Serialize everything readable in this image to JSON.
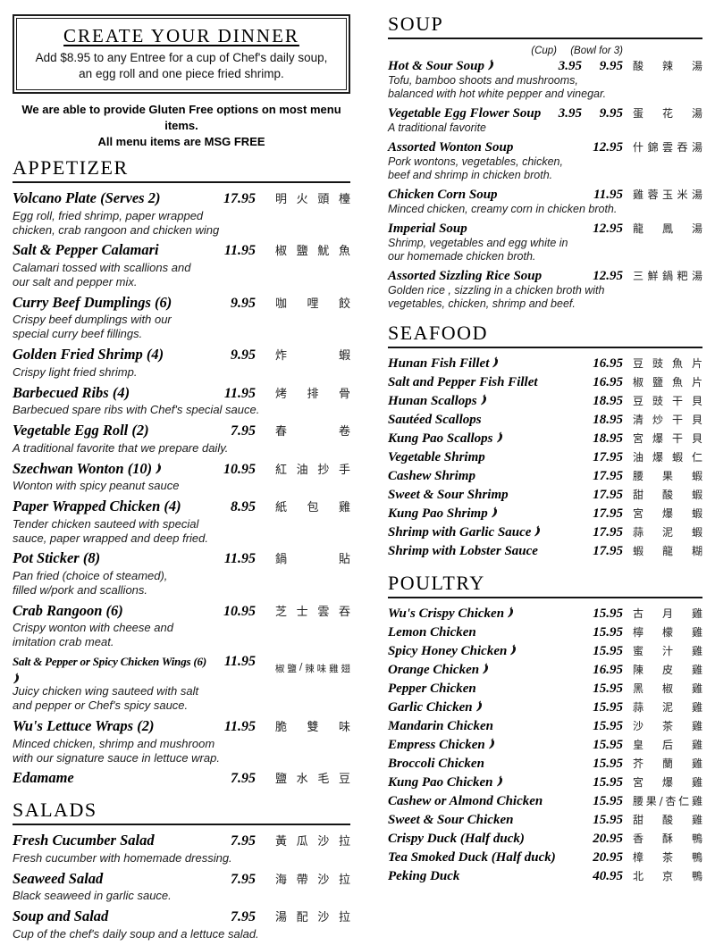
{
  "create_dinner": {
    "title": "CREATE YOUR DINNER",
    "line1": "Add $8.95 to any Entree for a cup of Chef's daily soup,",
    "line2": "an egg roll and one piece fried shrimp."
  },
  "note": {
    "line1": "We are able to provide Gluten Free options on most menu items.",
    "line2": "All menu items are MSG FREE"
  },
  "appetizer": {
    "title": "APPETIZER",
    "items": [
      {
        "name": "Volcano Plate (Serves 2)",
        "price": "17.95",
        "chinese": "明火頭檯",
        "desc": [
          "Egg roll, fried shrimp, paper wrapped",
          "chicken, crab rangoon and chicken wing"
        ]
      },
      {
        "name": "Salt & Pepper Calamari",
        "price": "11.95",
        "chinese": "椒鹽魷魚",
        "desc": [
          "Calamari tossed with scallions and",
          "our salt and pepper mix."
        ]
      },
      {
        "name": "Curry Beef Dumplings (6)",
        "price": "9.95",
        "chinese": "咖哩餃",
        "desc": [
          "Crispy beef dumplings with our",
          "special curry beef fillings."
        ]
      },
      {
        "name": "Golden Fried Shrimp (4)",
        "price": "9.95",
        "chinese": "炸蝦",
        "desc": [
          "Crispy light fried shrimp."
        ]
      },
      {
        "name": "Barbecued Ribs (4)",
        "price": "11.95",
        "chinese": "烤排骨",
        "desc": [
          "Barbecued spare ribs with Chef's special sauce."
        ]
      },
      {
        "name": "Vegetable Egg Roll (2)",
        "price": "7.95",
        "chinese": "春卷",
        "desc": [
          "A traditional favorite that we prepare daily."
        ]
      },
      {
        "name": "Szechwan Wonton (10)",
        "spicy": true,
        "price": "10.95",
        "chinese": "紅油抄手",
        "desc": [
          "Wonton with spicy peanut sauce"
        ]
      },
      {
        "name": "Paper Wrapped Chicken (4)",
        "price": "8.95",
        "chinese": "紙包雞",
        "desc": [
          "Tender chicken sauteed with special",
          "sauce, paper wrapped and deep fried."
        ]
      },
      {
        "name": "Pot Sticker (8)",
        "price": "11.95",
        "chinese": "鍋貼",
        "desc": [
          "Pan fried (choice of steamed),",
          "filled w/pork and scallions."
        ]
      },
      {
        "name": "Crab Rangoon (6)",
        "price": "10.95",
        "chinese": "芝士雲吞",
        "desc": [
          "Crispy wonton with cheese and",
          "imitation crab meat."
        ]
      },
      {
        "name": "Salt & Pepper or Spicy Chicken Wings (6)",
        "spicy": true,
        "condensed": true,
        "price": "11.95",
        "chinese": "椒鹽/辣味雞翅",
        "desc": [
          "Juicy chicken wing sauteed with salt",
          "and pepper or Chef's spicy sauce."
        ]
      },
      {
        "name": "Wu's Lettuce Wraps (2)",
        "price": "11.95",
        "chinese": "脆雙味",
        "desc": [
          "Minced chicken, shrimp and mushroom",
          "with our signature sauce in lettuce wrap."
        ]
      },
      {
        "name": "Edamame",
        "price": "7.95",
        "chinese": "鹽水毛豆",
        "desc": []
      }
    ]
  },
  "salads": {
    "title": "SALADS",
    "items": [
      {
        "name": "Fresh Cucumber Salad",
        "price": "7.95",
        "chinese": "黃瓜沙拉",
        "desc": [
          "Fresh cucumber with homemade dressing."
        ]
      },
      {
        "name": "Seaweed Salad",
        "price": "7.95",
        "chinese": "海帶沙拉",
        "desc": [
          "Black seaweed in garlic sauce."
        ]
      },
      {
        "name": "Soup and Salad",
        "price": "7.95",
        "chinese": "湯配沙拉",
        "desc": [
          "Cup of the chef's daily soup and a lettuce salad."
        ]
      }
    ]
  },
  "soup": {
    "title": "SOUP",
    "cup_label": "(Cup)",
    "bowl_label": "(Bowl for 3)",
    "items": [
      {
        "name": "Hot & Sour Soup",
        "spicy": true,
        "cup_price": "3.95",
        "bowl_price": "9.95",
        "chinese": "酸辣湯",
        "desc": [
          "Tofu, bamboo shoots and mushrooms,",
          "balanced with hot white pepper and vinegar."
        ]
      },
      {
        "name": "Vegetable Egg Flower Soup",
        "cup_price": "3.95",
        "bowl_price": "9.95",
        "chinese": "蛋花湯",
        "desc": [
          "A traditional favorite"
        ]
      },
      {
        "name": "Assorted Wonton Soup",
        "cup_price": "",
        "bowl_price": "12.95",
        "chinese": "什錦雲吞湯",
        "desc": [
          "Pork wontons, vegetables, chicken,",
          "beef and shrimp in chicken broth."
        ]
      },
      {
        "name": "Chicken Corn Soup",
        "cup_price": "",
        "bowl_price": "11.95",
        "chinese": "雞蓉玉米湯",
        "desc": [
          "Minced chicken, creamy corn in chicken broth."
        ]
      },
      {
        "name": "Imperial Soup",
        "cup_price": "",
        "bowl_price": "12.95",
        "chinese": "龍鳳湯",
        "desc": [
          "Shrimp, vegetables and egg white in",
          "our homemade chicken broth."
        ]
      },
      {
        "name": "Assorted Sizzling Rice Soup",
        "cup_price": "",
        "bowl_price": "12.95",
        "chinese": "三鮮鍋粑湯",
        "desc": [
          "Golden rice , sizzling in a chicken broth with",
          "vegetables, chicken, shrimp and beef."
        ]
      }
    ]
  },
  "seafood": {
    "title": "SEAFOOD",
    "items": [
      {
        "name": "Hunan Fish Fillet",
        "spicy": true,
        "price": "16.95",
        "chinese": "豆豉魚片"
      },
      {
        "name": "Salt and Pepper Fish Fillet",
        "price": "16.95",
        "chinese": "椒鹽魚片"
      },
      {
        "name": "Hunan Scallops",
        "spicy": true,
        "price": "18.95",
        "chinese": "豆豉干貝"
      },
      {
        "name": "Sautéed Scallops",
        "price": "18.95",
        "chinese": "清炒干貝"
      },
      {
        "name": "Kung Pao Scallops",
        "spicy": true,
        "price": "18.95",
        "chinese": "宮爆干貝"
      },
      {
        "name": "Vegetable Shrimp",
        "price": "17.95",
        "chinese": "油爆蝦仁"
      },
      {
        "name": "Cashew Shrimp",
        "price": "17.95",
        "chinese": "腰果蝦"
      },
      {
        "name": "Sweet & Sour Shrimp",
        "price": "17.95",
        "chinese": "甜酸蝦"
      },
      {
        "name": "Kung Pao Shrimp",
        "spicy": true,
        "price": "17.95",
        "chinese": "宮爆蝦"
      },
      {
        "name": "Shrimp with Garlic Sauce",
        "spicy": true,
        "price": "17.95",
        "chinese": "蒜泥蝦"
      },
      {
        "name": "Shrimp with Lobster Sauce",
        "price": "17.95",
        "chinese": "蝦龍糊"
      }
    ]
  },
  "poultry": {
    "title": "POULTRY",
    "items": [
      {
        "name": "Wu's Crispy Chicken",
        "spicy": true,
        "price": "15.95",
        "chinese": "古月雞"
      },
      {
        "name": "Lemon Chicken",
        "price": "15.95",
        "chinese": "檸檬雞"
      },
      {
        "name": "Spicy Honey Chicken",
        "spicy": true,
        "price": "15.95",
        "chinese": "蜜汁雞"
      },
      {
        "name": "Orange Chicken",
        "spicy": true,
        "price": "16.95",
        "chinese": "陳皮雞"
      },
      {
        "name": "Pepper Chicken",
        "price": "15.95",
        "chinese": "黑椒雞"
      },
      {
        "name": "Garlic Chicken",
        "spicy": true,
        "price": "15.95",
        "chinese": "蒜泥雞"
      },
      {
        "name": "Mandarin Chicken",
        "price": "15.95",
        "chinese": "沙茶雞"
      },
      {
        "name": "Empress Chicken",
        "spicy": true,
        "price": "15.95",
        "chinese": "皇后雞"
      },
      {
        "name": "Broccoli Chicken",
        "price": "15.95",
        "chinese": "芥蘭雞"
      },
      {
        "name": "Kung Pao Chicken",
        "spicy": true,
        "price": "15.95",
        "chinese": "宮爆雞"
      },
      {
        "name": "Cashew or Almond Chicken",
        "price": "15.95",
        "chinese": "腰果/杏仁雞"
      },
      {
        "name": "Sweet & Sour Chicken",
        "price": "15.95",
        "chinese": "甜酸雞"
      },
      {
        "name": "Crispy Duck (Half duck)",
        "price": "20.95",
        "chinese": "香酥鴨"
      },
      {
        "name": "Tea Smoked Duck (Half duck)",
        "price": "20.95",
        "chinese": "樟茶鴨"
      },
      {
        "name": "Peking Duck",
        "price": "40.95",
        "chinese": "北京鴨"
      }
    ]
  }
}
